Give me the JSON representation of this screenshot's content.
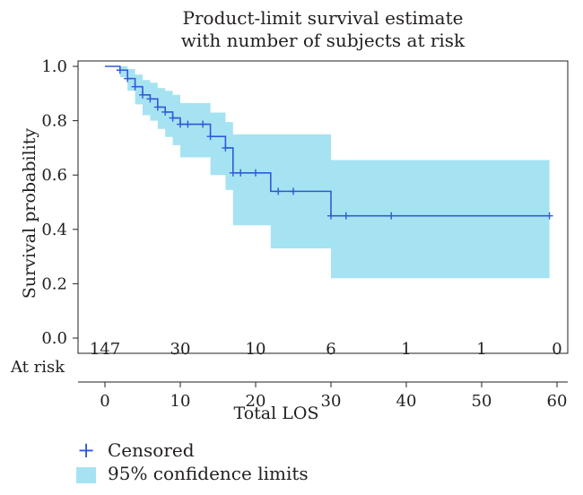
{
  "chart_data": {
    "type": "line",
    "title_line1": "Product-limit survival estimate",
    "title_line2": "with number of subjects at risk",
    "xlabel": "Total LOS",
    "ylabel": "Survival probability",
    "xlim": [
      -5,
      62
    ],
    "ylim": [
      0,
      1.02
    ],
    "xticks": [
      0,
      10,
      20,
      30,
      40,
      50,
      60
    ],
    "yticks": [
      "0.0",
      "0.2",
      "0.4",
      "0.6",
      "0.8",
      "1.0"
    ],
    "grid": false,
    "series": [
      {
        "type": "step",
        "color": "#2e5bd6",
        "x": [
          0,
          2,
          3,
          4,
          5,
          6,
          7,
          8,
          9,
          10,
          14,
          16,
          17,
          22,
          30,
          59
        ],
        "y": [
          1.0,
          0.986,
          0.955,
          0.925,
          0.895,
          0.88,
          0.85,
          0.832,
          0.81,
          0.787,
          0.742,
          0.7,
          0.608,
          0.54,
          0.45,
          0.45
        ]
      }
    ],
    "confidence_band": {
      "name": "95% confidence limits",
      "color": "#a6e3f2",
      "x": [
        0,
        2,
        3,
        4,
        5,
        6,
        7,
        8,
        9,
        10,
        14,
        16,
        17,
        22,
        30,
        59
      ],
      "lower": [
        1.0,
        0.96,
        0.91,
        0.86,
        0.82,
        0.8,
        0.77,
        0.74,
        0.71,
        0.665,
        0.6,
        0.545,
        0.415,
        0.33,
        0.22,
        0.22
      ],
      "upper": [
        1.0,
        1.0,
        0.99,
        0.97,
        0.95,
        0.94,
        0.92,
        0.91,
        0.895,
        0.865,
        0.83,
        0.795,
        0.75,
        0.75,
        0.655,
        0.655
      ]
    },
    "censored": {
      "name": "Censored",
      "x": [
        2,
        3,
        4,
        5,
        6,
        7,
        8,
        9,
        10,
        11,
        13,
        14,
        16,
        17,
        18,
        20,
        23,
        25,
        30,
        32,
        38,
        59
      ],
      "y": [
        0.986,
        0.955,
        0.925,
        0.895,
        0.88,
        0.85,
        0.832,
        0.81,
        0.787,
        0.787,
        0.787,
        0.742,
        0.7,
        0.608,
        0.608,
        0.608,
        0.54,
        0.54,
        0.45,
        0.45,
        0.45,
        0.45
      ]
    },
    "at_risk": {
      "label": "At risk",
      "x": [
        0,
        10,
        20,
        30,
        40,
        50,
        60
      ],
      "counts": [
        "147",
        "30",
        "10",
        "6",
        "1",
        "1",
        "0"
      ]
    },
    "legend_position": "bottom-left"
  }
}
